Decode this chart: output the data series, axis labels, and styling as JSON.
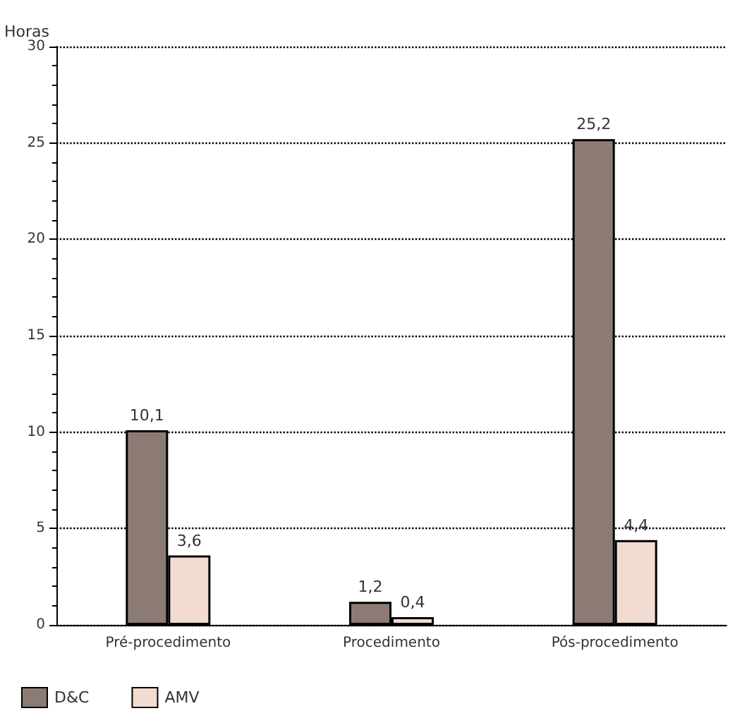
{
  "chart_data": {
    "type": "bar",
    "ylabel": "Horas",
    "categories": [
      "Pré-procedimento",
      "Procedimento",
      "Pós-procedimento"
    ],
    "series": [
      {
        "name": "D&C",
        "color": "#8c7b74",
        "values": [
          10.1,
          1.2,
          25.2
        ],
        "value_labels": [
          "10,1",
          "1,2",
          "25,2"
        ]
      },
      {
        "name": "AMV",
        "color": "#f2dcd2",
        "values": [
          3.6,
          0.4,
          4.4
        ],
        "value_labels": [
          "3,6",
          "0,4",
          "4,4"
        ]
      }
    ],
    "ylim": [
      0,
      30
    ],
    "yticks": [
      0,
      5,
      10,
      15,
      20,
      25,
      30
    ],
    "grid": "y",
    "legend": "bottom left"
  }
}
